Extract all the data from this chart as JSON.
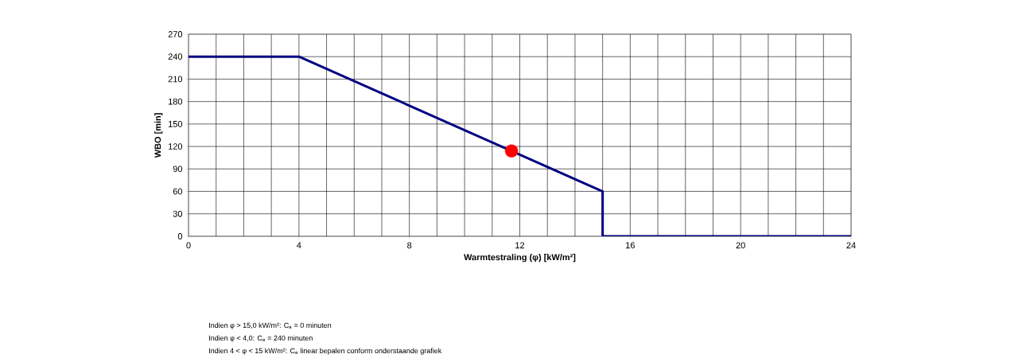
{
  "chart_data": {
    "type": "line",
    "xlabel": "Warmtestraling (φ) [kW/m²]",
    "ylabel": "WBO [min]",
    "series": [
      {
        "color": "#000080",
        "x": [
          0,
          4,
          15,
          15,
          24
        ],
        "values": [
          240,
          240,
          60,
          0,
          0
        ]
      },
      {
        "type": "scatter",
        "color": "#ff0000",
        "x": [
          11.7
        ],
        "values": [
          114
        ]
      }
    ],
    "xlim": [
      0,
      24
    ],
    "xticks": [
      0,
      4,
      8,
      12,
      16,
      20,
      24
    ],
    "ylim": [
      0,
      270
    ],
    "yticks": [
      0,
      30,
      60,
      90,
      120,
      150,
      180,
      210,
      240,
      270
    ],
    "grid": true,
    "annotations": [
      "Indien φ > 15,0 kW/m²: C$_{a}$ = 0 minuten",
      "Indien φ < 4,0: C$_{a}$ = 240 minuten",
      "Indien 4 < φ < 15 kW/m²: C$_{a}$ linear bepalen conform onderstaande grafiek"
    ]
  }
}
